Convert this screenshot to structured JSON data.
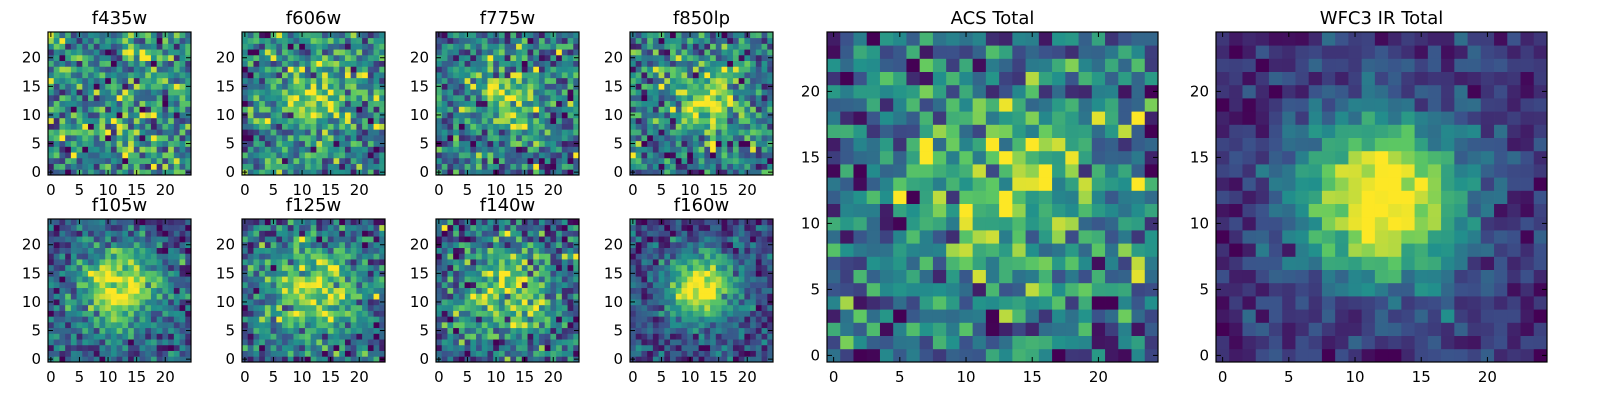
{
  "figure": {
    "colormap": "viridis",
    "colors": [
      "#440154",
      "#3b528b",
      "#21918c",
      "#5ec962",
      "#fde725"
    ]
  },
  "chart_data": [
    {
      "type": "heatmap",
      "title": "f435w",
      "grid_size": 25,
      "xticks": [
        0,
        5,
        10,
        15,
        20
      ],
      "yticks": [
        0,
        5,
        10,
        15,
        20
      ],
      "xlim": [
        0,
        24
      ],
      "ylim": [
        0,
        24
      ],
      "source_center": null,
      "blob_strength": 0.0,
      "source_sigma": 4.0,
      "noise": 0.95,
      "seed": 11
    },
    {
      "type": "heatmap",
      "title": "f606w",
      "grid_size": 25,
      "xticks": [
        0,
        5,
        10,
        15,
        20
      ],
      "yticks": [
        0,
        5,
        10,
        15,
        20
      ],
      "xlim": [
        0,
        24
      ],
      "ylim": [
        0,
        24
      ],
      "source_center": [
        12.5,
        13.5
      ],
      "blob_strength": 0.3,
      "source_sigma": 4.5,
      "noise": 0.75,
      "seed": 23
    },
    {
      "type": "heatmap",
      "title": "f775w",
      "grid_size": 25,
      "xticks": [
        0,
        5,
        10,
        15,
        20
      ],
      "yticks": [
        0,
        5,
        10,
        15,
        20
      ],
      "xlim": [
        0,
        24
      ],
      "ylim": [
        0,
        24
      ],
      "source_center": [
        12.5,
        13.0
      ],
      "blob_strength": 0.35,
      "source_sigma": 4.5,
      "noise": 0.7,
      "seed": 37
    },
    {
      "type": "heatmap",
      "title": "f850lp",
      "grid_size": 25,
      "xticks": [
        0,
        5,
        10,
        15,
        20
      ],
      "yticks": [
        0,
        5,
        10,
        15,
        20
      ],
      "xlim": [
        0,
        24
      ],
      "ylim": [
        0,
        24
      ],
      "source_center": [
        13.0,
        12.5
      ],
      "blob_strength": 0.45,
      "source_sigma": 4.5,
      "noise": 0.7,
      "seed": 41
    },
    {
      "type": "heatmap",
      "title": "f105w",
      "grid_size": 25,
      "xticks": [
        0,
        5,
        10,
        15,
        20
      ],
      "yticks": [
        0,
        5,
        10,
        15,
        20
      ],
      "xlim": [
        0,
        24
      ],
      "ylim": [
        0,
        24
      ],
      "source_center": [
        12.0,
        12.0
      ],
      "blob_strength": 0.55,
      "source_sigma": 5.0,
      "noise": 0.4,
      "seed": 53
    },
    {
      "type": "heatmap",
      "title": "f125w",
      "grid_size": 25,
      "xticks": [
        0,
        5,
        10,
        15,
        20
      ],
      "yticks": [
        0,
        5,
        10,
        15,
        20
      ],
      "xlim": [
        0,
        24
      ],
      "ylim": [
        0,
        24
      ],
      "source_center": [
        12.0,
        12.0
      ],
      "blob_strength": 0.4,
      "source_sigma": 6.5,
      "noise": 0.45,
      "seed": 67
    },
    {
      "type": "heatmap",
      "title": "f140w",
      "grid_size": 25,
      "xticks": [
        0,
        5,
        10,
        15,
        20
      ],
      "yticks": [
        0,
        5,
        10,
        15,
        20
      ],
      "xlim": [
        0,
        24
      ],
      "ylim": [
        0,
        24
      ],
      "source_center": [
        12.0,
        11.5
      ],
      "blob_strength": 0.45,
      "source_sigma": 5.5,
      "noise": 0.6,
      "seed": 71
    },
    {
      "type": "heatmap",
      "title": "f160w",
      "grid_size": 25,
      "xticks": [
        0,
        5,
        10,
        15,
        20
      ],
      "yticks": [
        0,
        5,
        10,
        15,
        20
      ],
      "xlim": [
        0,
        24
      ],
      "ylim": [
        0,
        24
      ],
      "source_center": [
        12.0,
        12.5
      ],
      "blob_strength": 0.7,
      "source_sigma": 4.0,
      "noise": 0.4,
      "seed": 83
    },
    {
      "type": "heatmap",
      "title": "ACS Total",
      "grid_size": 25,
      "xticks": [
        0,
        5,
        10,
        15,
        20
      ],
      "yticks": [
        0,
        5,
        10,
        15,
        20
      ],
      "xlim": [
        0,
        24
      ],
      "ylim": [
        0,
        24
      ],
      "source_center": [
        13.0,
        12.5
      ],
      "blob_strength": 0.4,
      "source_sigma": 5.0,
      "noise": 0.65,
      "seed": 97
    },
    {
      "type": "heatmap",
      "title": "WFC3 IR Total",
      "grid_size": 25,
      "xticks": [
        0,
        5,
        10,
        15,
        20
      ],
      "yticks": [
        0,
        5,
        10,
        15,
        20
      ],
      "xlim": [
        0,
        24
      ],
      "ylim": [
        0,
        24
      ],
      "source_center": [
        12.0,
        12.0
      ],
      "blob_strength": 0.85,
      "source_sigma": 4.5,
      "noise": 0.28,
      "seed": 101
    }
  ]
}
